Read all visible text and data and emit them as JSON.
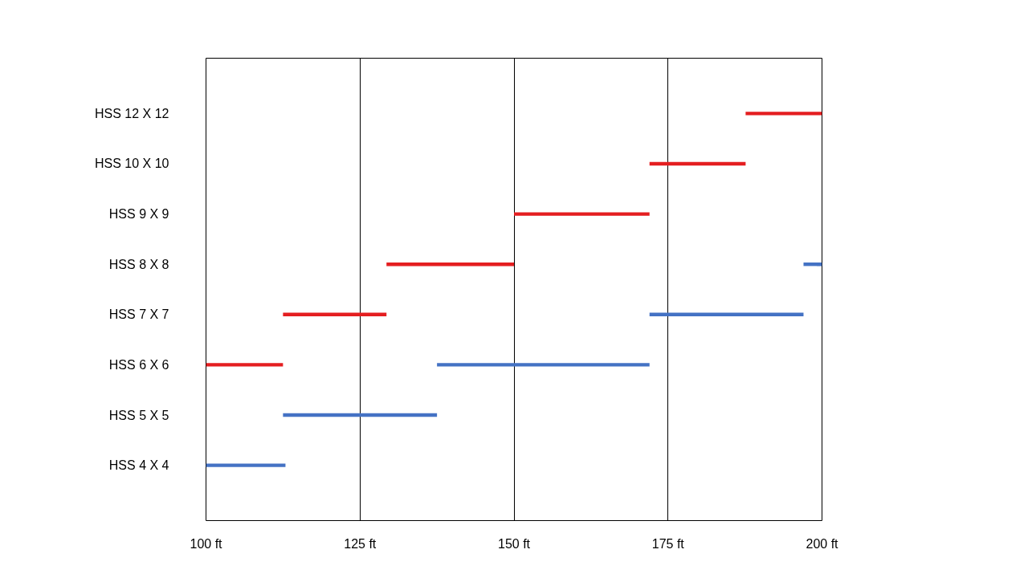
{
  "chart_data": {
    "type": "bar",
    "orientation": "horizontal",
    "categories": [
      "HSS 12 X 12",
      "HSS 10 X 10",
      "HSS 9 X 9",
      "HSS 8 X 8",
      "HSS 7 X 7",
      "HSS 6 X 6",
      "HSS 5 X 5",
      "HSS 4 X 4"
    ],
    "series": [
      {
        "color": "#e41e20",
        "base": [
          187.6,
          172,
          150,
          129.3,
          112.5,
          100,
          null,
          null
        ],
        "values": [
          12.4,
          15.6,
          22,
          20.7,
          16.8,
          12.5,
          null,
          null
        ]
      },
      {
        "color": "#4472c4",
        "base": [
          null,
          null,
          null,
          197,
          172,
          137.5,
          112.5,
          100
        ],
        "values": [
          null,
          null,
          null,
          3,
          25,
          34.5,
          25,
          12.9
        ]
      }
    ],
    "xlim": [
      100,
      200
    ],
    "xticks": [
      {
        "value": 100,
        "label": "100 ft"
      },
      {
        "value": 125,
        "label": "125 ft"
      },
      {
        "value": 150,
        "label": "150 ft"
      },
      {
        "value": 175,
        "label": "175 ft"
      },
      {
        "value": 200,
        "label": "200 ft"
      }
    ],
    "grid": "x"
  }
}
